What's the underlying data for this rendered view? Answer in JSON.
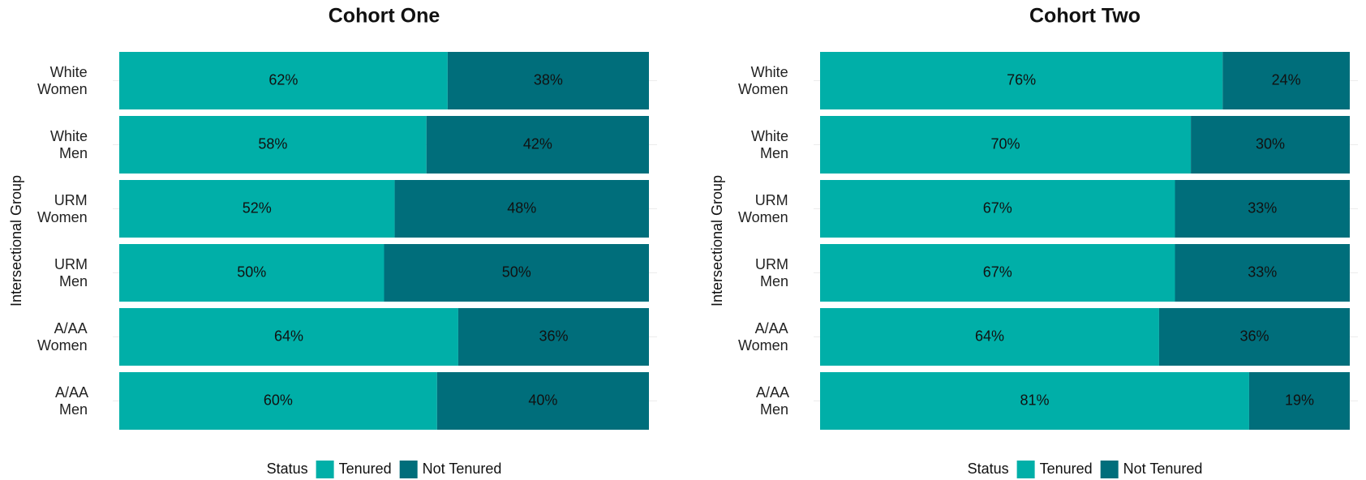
{
  "chart_data": [
    {
      "type": "stacked_barh",
      "title": "Cohort One",
      "ylabel": "Intersectional Group",
      "categories": [
        "White Women",
        "White Men",
        "URM Women",
        "URM Men",
        "A/AA Women",
        "A/AA Men"
      ],
      "xlim": [
        0,
        100
      ],
      "legend_title": "Status",
      "legend": "bottom",
      "series": [
        {
          "name": "Tenured",
          "color": "#00afa8",
          "values": [
            62,
            58,
            52,
            50,
            64,
            60
          ],
          "value_labels": [
            "62%",
            "58%",
            "52%",
            "50%",
            "64%",
            "60%"
          ]
        },
        {
          "name": "Not Tenured",
          "color": "#006e7b",
          "values": [
            38,
            42,
            48,
            50,
            36,
            40
          ],
          "value_labels": [
            "38%",
            "42%",
            "48%",
            "50%",
            "36%",
            "40%"
          ]
        }
      ]
    },
    {
      "type": "stacked_barh",
      "title": "Cohort Two",
      "ylabel": "Intersectional Group",
      "categories": [
        "White Women",
        "White Men",
        "URM Women",
        "URM Men",
        "A/AA Women",
        "A/AA Men"
      ],
      "xlim": [
        0,
        100
      ],
      "legend_title": "Status",
      "legend": "bottom",
      "series": [
        {
          "name": "Tenured",
          "color": "#00afa8",
          "values": [
            76,
            70,
            67,
            67,
            64,
            81
          ],
          "value_labels": [
            "76%",
            "70%",
            "67%",
            "67%",
            "64%",
            "81%"
          ]
        },
        {
          "name": "Not Tenured",
          "color": "#006e7b",
          "values": [
            24,
            30,
            33,
            33,
            36,
            19
          ],
          "value_labels": [
            "24%",
            "30%",
            "33%",
            "33%",
            "36%",
            "19%"
          ]
        }
      ]
    }
  ]
}
